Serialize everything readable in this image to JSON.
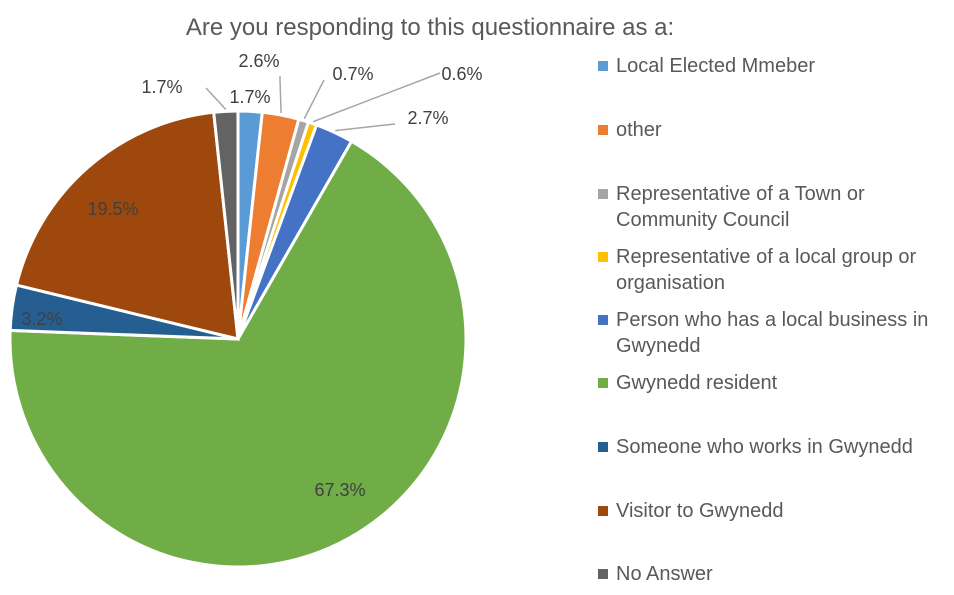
{
  "chart_data": {
    "type": "pie",
    "title": "Are you responding to this questionnaire as a:",
    "slices": [
      {
        "label": "Local Elected Mmeber",
        "value": 1.7,
        "display": "1.7%",
        "color": "#5B9BD5"
      },
      {
        "label": "other",
        "value": 2.6,
        "display": "2.6%",
        "color": "#ED7D31"
      },
      {
        "label": "Representative of a Town or Community Council",
        "value": 0.7,
        "display": "0.7%",
        "color": "#A5A5A5"
      },
      {
        "label": "Representative of a local group or organisation",
        "value": 0.6,
        "display": "0.6%",
        "color": "#FFC000"
      },
      {
        "label": "Person who has a local business in Gwynedd",
        "value": 2.7,
        "display": "2.7%",
        "color": "#4472C4"
      },
      {
        "label": "Gwynedd resident",
        "value": 67.3,
        "display": "67.3%",
        "color": "#70AD47"
      },
      {
        "label": "Someone who works in Gwynedd",
        "value": 3.2,
        "display": "3.2%",
        "color": "#255E91"
      },
      {
        "label": "Visitor to Gwynedd",
        "value": 19.5,
        "display": "19.5%",
        "color": "#9E480E"
      },
      {
        "label": "No Answer",
        "value": 1.7,
        "display": "1.7%",
        "color": "#636363"
      }
    ],
    "legend_position": "right"
  }
}
